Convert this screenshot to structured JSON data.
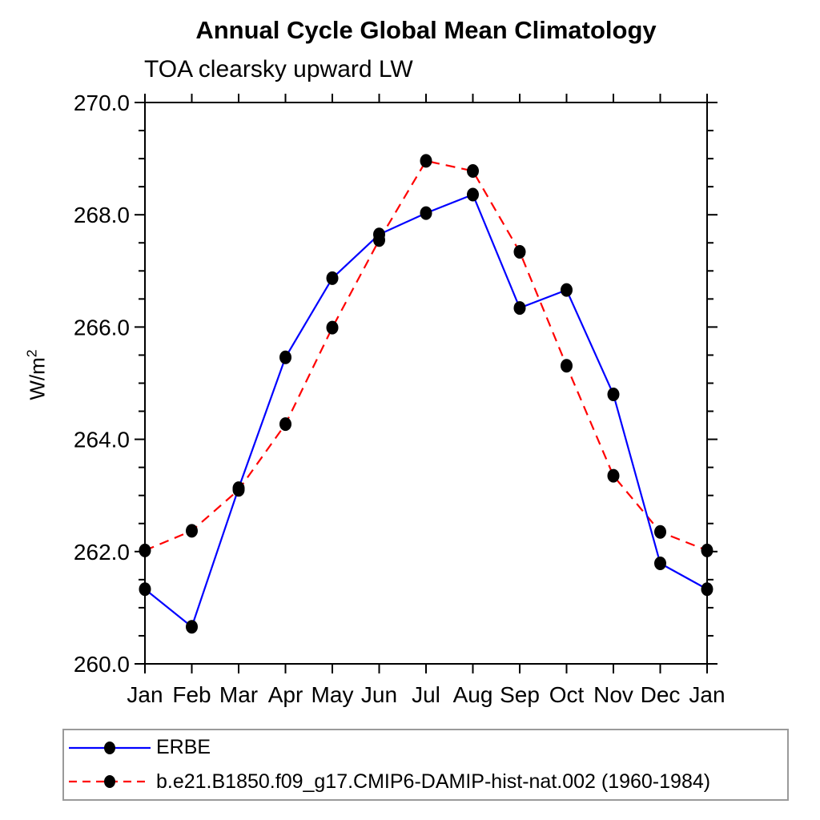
{
  "title": "Annual Cycle Global Mean Climatology",
  "subtitle": "TOA clearsky upward LW",
  "y_axis": {
    "label_base": "W/m",
    "label_sup": "2"
  },
  "chart_data": {
    "type": "line",
    "title": "Annual Cycle Global Mean Climatology",
    "subtitle": "TOA clearsky upward LW",
    "ylabel": "W/m^2",
    "xlabel": "",
    "categories": [
      "Jan",
      "Feb",
      "Mar",
      "Apr",
      "May",
      "Jun",
      "Jul",
      "Aug",
      "Sep",
      "Oct",
      "Nov",
      "Dec",
      "Jan"
    ],
    "ylim": [
      260.0,
      270.0
    ],
    "y_major_ticks": [
      260.0,
      262.0,
      264.0,
      266.0,
      268.0,
      270.0
    ],
    "y_major_tick_labels": [
      "260.0",
      "262.0",
      "264.0",
      "266.0",
      "268.0",
      "270.0"
    ],
    "y_minor_tick_step": 0.5,
    "grid": false,
    "legend_position": "bottom-left boxed",
    "marker": "filled-circle",
    "marker_color": "#000000",
    "axis_color": "#000000",
    "series": [
      {
        "name": "ERBE",
        "color": "#0000ff",
        "line_style": "solid",
        "values": [
          261.33,
          260.66,
          263.13,
          265.46,
          266.87,
          267.65,
          268.03,
          268.36,
          266.34,
          266.66,
          264.8,
          261.79,
          261.33
        ]
      },
      {
        "name": "b.e21.B1850.f09_g17.CMIP6-DAMIP-hist-nat.002 (1960-1984)",
        "color": "#ff0000",
        "line_style": "dashed",
        "values": [
          262.02,
          262.37,
          263.1,
          264.27,
          265.99,
          267.55,
          268.96,
          268.78,
          267.34,
          265.31,
          263.35,
          262.35,
          262.02
        ]
      }
    ]
  }
}
